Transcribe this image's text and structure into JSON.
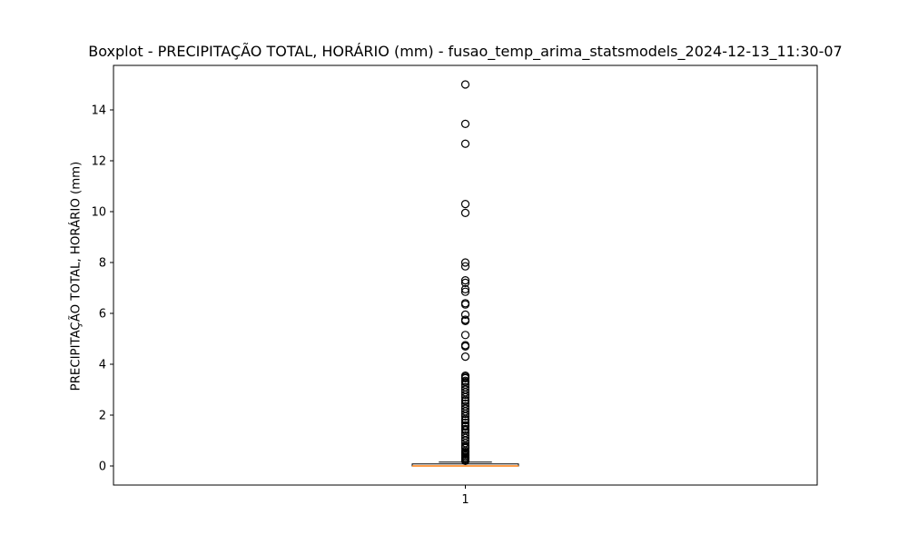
{
  "chart_data": {
    "type": "boxplot",
    "title": "Boxplot - PRECIPITAÇÃO TOTAL, HORÁRIO (mm) - fusao_temp_arima_statsmodels_2024-12-13_11:30-07",
    "xlabel": "",
    "ylabel": "PRECIPITAÇÃO TOTAL, HORÁRIO (mm)",
    "categories": [
      "1"
    ],
    "ylim": [
      -0.75,
      15.75
    ],
    "yticks": [
      0,
      2,
      4,
      6,
      8,
      10,
      12,
      14
    ],
    "ytick_labels": [
      "0",
      "2",
      "4",
      "6",
      "8",
      "10",
      "12",
      "14"
    ],
    "grid": false,
    "boxes": [
      {
        "label": "1",
        "min": 0.0,
        "q1": 0.0,
        "median": 0.0,
        "q3": 0.08,
        "max": 0.15,
        "outliers": [
          15.0,
          13.45,
          12.67,
          10.3,
          9.95,
          8.0,
          7.85,
          7.3,
          7.2,
          6.95,
          6.85,
          6.4,
          6.35,
          5.95,
          5.75,
          5.7,
          5.15,
          4.75,
          4.7,
          4.3,
          3.55,
          3.5,
          3.45,
          3.35,
          3.3,
          3.2,
          3.1,
          3.0,
          2.9,
          2.8,
          2.7,
          2.6,
          2.55,
          2.45,
          2.35,
          2.25,
          2.15,
          2.05,
          1.95,
          1.85,
          1.8,
          1.7,
          1.6,
          1.55,
          1.45,
          1.4,
          1.3,
          1.2,
          1.1,
          1.0,
          0.9,
          0.8,
          0.75,
          0.7,
          0.6,
          0.55,
          0.5,
          0.45,
          0.4,
          0.35,
          0.3,
          0.25,
          0.2
        ]
      }
    ]
  },
  "colors": {
    "median": "#ff7f0e",
    "box_edge": "#000000",
    "outlier_edge": "#000000"
  }
}
